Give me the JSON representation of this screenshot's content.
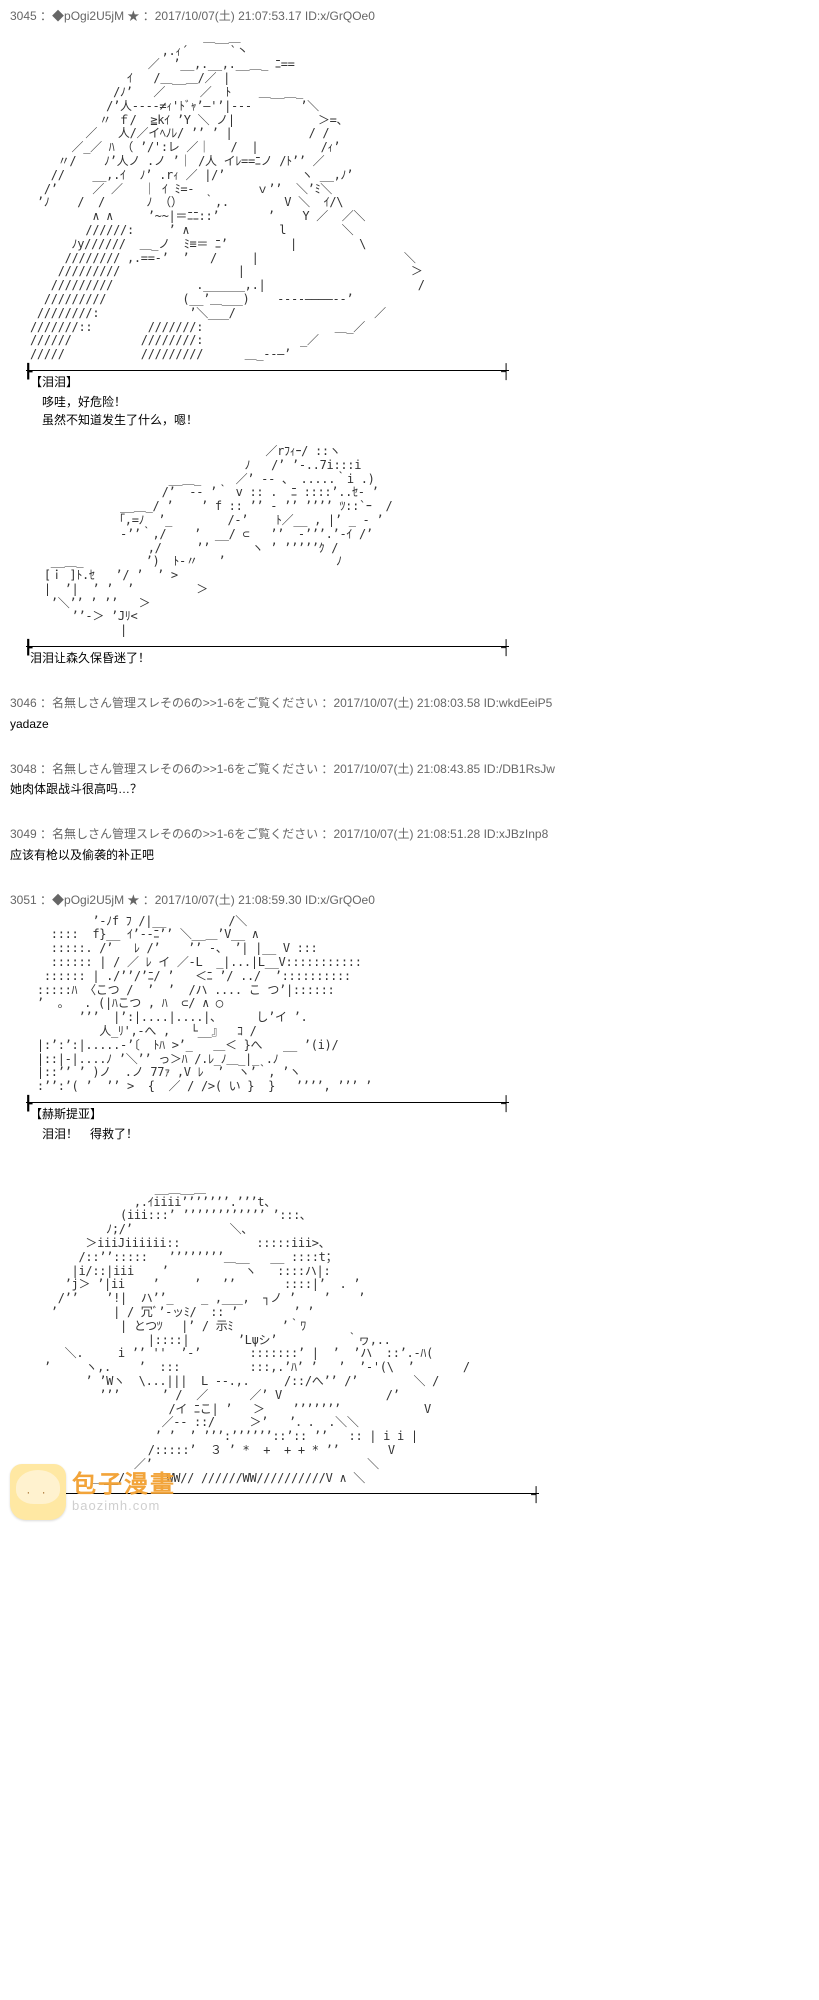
{
  "posts": [
    {
      "num": "3045",
      "name": "◆pOgi2U5jM ★",
      "time": "2017/10/07(土) 21:07:53.17",
      "id": "ID:x/GrQOe0",
      "art1_desc": "ASCII art figure – large creature/character outline composed of slashes, underscores and shading (approx. 34 lines)",
      "tag1": "【泪泪】",
      "line1a": "哆哇，好危险！",
      "line1b": "虽然不知道发生了什么，嗯！",
      "art2_desc": "ASCII art figure – flying/prone character (approx. 18 lines)",
      "narration": "泪泪让森久保昏迷了！"
    },
    {
      "num": "3046",
      "name": "名無しさん管理スレその6の>>1-6をご覧ください",
      "time": "2017/10/07(土) 21:08:03.58",
      "id": "ID:wkdEeiP5",
      "body": "yadaze"
    },
    {
      "num": "3048",
      "name": "名無しさん管理スレその6の>>1-6をご覧ください",
      "time": "2017/10/07(土) 21:08:43.85",
      "id": "ID:/DB1RsJw",
      "body": "她肉体跟战斗很高吗…？"
    },
    {
      "num": "3049",
      "name": "名無しさん管理スレその6の>>1-6をご覧ください",
      "time": "2017/10/07(土) 21:08:51.28",
      "id": "ID:xJBzInp8",
      "body": "应该有枪以及偷袭的补正吧"
    },
    {
      "num": "3051",
      "name": "◆pOgi2U5jM ★",
      "time": "2017/10/07(土) 21:08:59.30",
      "id": "ID:x/GrQOe0",
      "art1_desc": "ASCII art bust portrait – girl with short hair (approx. 17 lines)",
      "tag1": "【赫斯提亚】",
      "line1a": "泪泪！　得救了！",
      "art2_desc": "ASCII art bust portrait – girl with long dark hair (approx. 28 lines)"
    }
  ],
  "watermark": {
    "title": "包子漫畫",
    "sub": "baozimh.com"
  },
  "colors": {
    "header": "#666666",
    "body": "#000000",
    "background": "#ffffff"
  }
}
